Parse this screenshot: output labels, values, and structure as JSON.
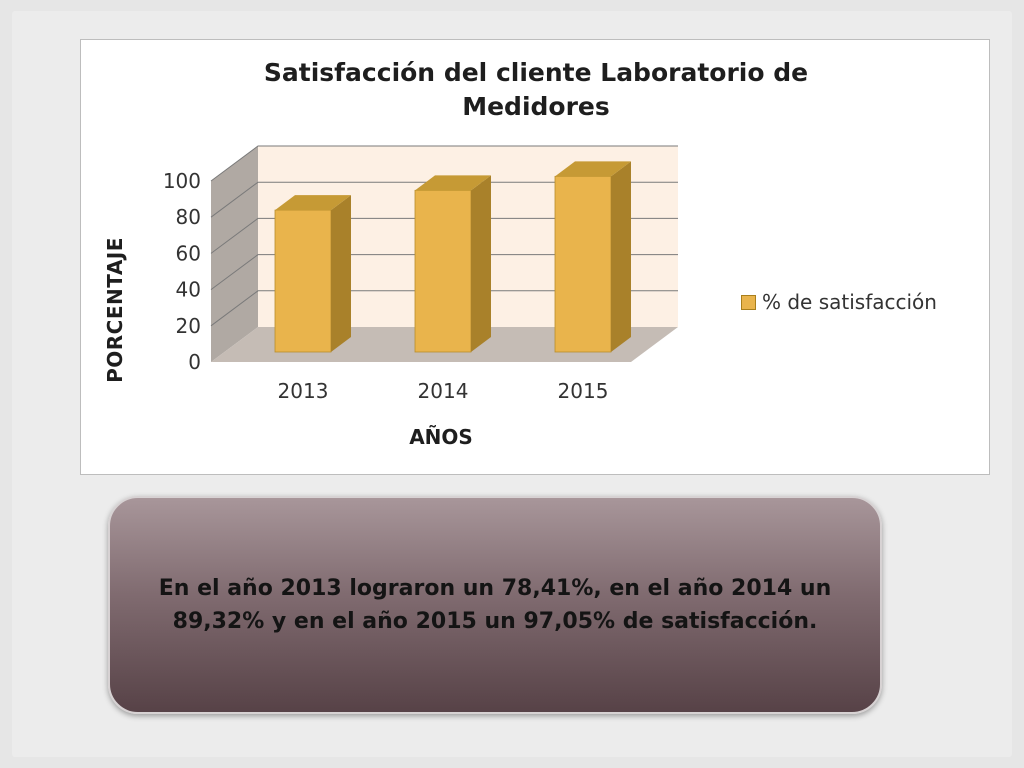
{
  "chart_data": {
    "type": "bar",
    "title": "Satisfacción del cliente Laboratorio de Medidores",
    "title_lines": [
      "Satisfacción del cliente Laboratorio de",
      "Medidores"
    ],
    "categories": [
      "2013",
      "2014",
      "2015"
    ],
    "series": [
      {
        "name": "% de satisfacción",
        "values": [
          78.41,
          89.32,
          97.05
        ]
      }
    ],
    "xlabel": "AÑOS",
    "ylabel": "PORCENTAJE",
    "ylim": [
      0,
      100
    ],
    "yticks": [
      "0",
      "20",
      "40",
      "60",
      "80",
      "100"
    ],
    "grid": true,
    "legend_position": "right",
    "colors": {
      "bar_front": "#e9b44c",
      "bar_top": "#c69a35",
      "bar_side": "#a9812a",
      "back_wall": "#fdf0e4",
      "side_wall": "#b0a9a3",
      "floor": "#c5bcb5"
    }
  },
  "callout": {
    "text": "En el año 2013 lograron un 78,41%, en el año 2014 un 89,32% y en el año 2015 un 97,05% de satisfacción."
  }
}
